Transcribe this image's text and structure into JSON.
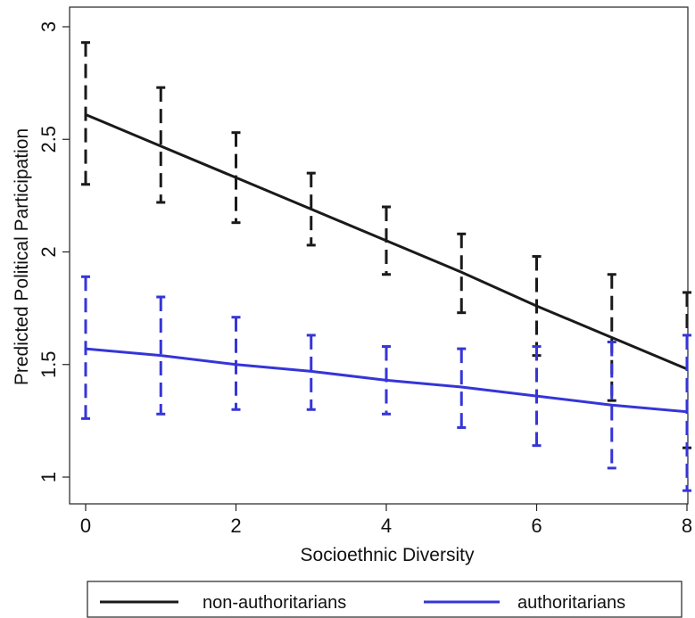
{
  "chart_data": {
    "type": "line",
    "xlabel": "Socioethnic Diversity",
    "ylabel": "Predicted Political Participation",
    "xlim": [
      0,
      8
    ],
    "ylim": [
      0.9,
      3.05
    ],
    "xticks": [
      0,
      2,
      4,
      6,
      8
    ],
    "yticks": [
      1,
      1.5,
      2,
      2.5,
      3
    ],
    "xtick_labels": [
      "0",
      "2",
      "4",
      "6",
      "8"
    ],
    "ytick_labels": [
      "1",
      "1.5",
      "2",
      "2.5",
      "3"
    ],
    "grid": false,
    "legend_position": "bottom",
    "series": [
      {
        "name": "non-authoritarians",
        "color": "#1a1a1a",
        "x": [
          0,
          1,
          2,
          3,
          4,
          5,
          6,
          7,
          8
        ],
        "y": [
          2.61,
          2.47,
          2.33,
          2.19,
          2.05,
          1.91,
          1.76,
          1.62,
          1.48
        ],
        "lower": [
          2.3,
          2.22,
          2.13,
          2.03,
          1.9,
          1.73,
          1.54,
          1.34,
          1.13
        ],
        "upper": [
          2.93,
          2.73,
          2.53,
          2.35,
          2.2,
          2.08,
          1.98,
          1.9,
          1.82
        ]
      },
      {
        "name": "authoritarians",
        "color": "#3535d8",
        "x": [
          0,
          1,
          2,
          3,
          4,
          5,
          6,
          7,
          8
        ],
        "y": [
          1.57,
          1.54,
          1.5,
          1.47,
          1.43,
          1.4,
          1.36,
          1.32,
          1.29
        ],
        "lower": [
          1.26,
          1.28,
          1.3,
          1.3,
          1.28,
          1.22,
          1.14,
          1.04,
          0.94
        ],
        "upper": [
          1.89,
          1.8,
          1.71,
          1.63,
          1.58,
          1.57,
          1.58,
          1.6,
          1.63
        ]
      }
    ]
  }
}
